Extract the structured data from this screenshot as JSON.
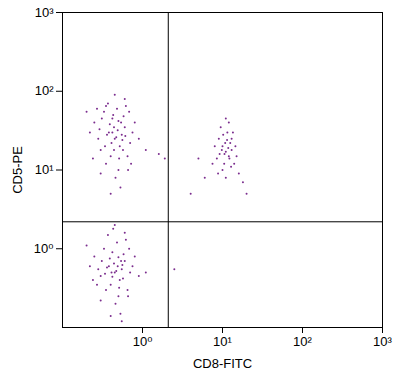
{
  "chart_data": {
    "type": "scatter",
    "xlabel": "CD8-FITC",
    "ylabel": "CD5-PE",
    "log": true,
    "color": "#7b2d8e",
    "xlim": [
      0.1,
      1000
    ],
    "ylim": [
      0.1,
      1000
    ],
    "xticks": [
      {
        "value": 1,
        "label": "10⁰"
      },
      {
        "value": 10,
        "label": "10¹"
      },
      {
        "value": 100,
        "label": "10²"
      },
      {
        "value": 1000,
        "label": "10³"
      }
    ],
    "yticks": [
      {
        "value": 1,
        "label": "10⁰"
      },
      {
        "value": 10,
        "label": "10¹"
      },
      {
        "value": 100,
        "label": "10²"
      },
      {
        "value": 1000,
        "label": "10³"
      }
    ],
    "gates": {
      "x": 2.1,
      "y": 2.2
    },
    "points": [
      [
        0.45,
        25
      ],
      [
        0.38,
        30
      ],
      [
        0.52,
        20
      ],
      [
        0.6,
        35
      ],
      [
        0.3,
        18
      ],
      [
        0.42,
        45
      ],
      [
        0.55,
        28
      ],
      [
        0.35,
        12
      ],
      [
        0.48,
        60
      ],
      [
        0.25,
        40
      ],
      [
        0.7,
        22
      ],
      [
        0.4,
        15
      ],
      [
        0.33,
        55
      ],
      [
        0.58,
        48
      ],
      [
        0.28,
        25
      ],
      [
        0.5,
        10
      ],
      [
        0.65,
        15
      ],
      [
        0.44,
        35
      ],
      [
        0.37,
        70
      ],
      [
        0.62,
        65
      ],
      [
        0.22,
        30
      ],
      [
        0.8,
        40
      ],
      [
        0.46,
        8
      ],
      [
        0.3,
        9
      ],
      [
        0.54,
        40
      ],
      [
        0.41,
        22
      ],
      [
        0.49,
        32
      ],
      [
        0.36,
        28
      ],
      [
        0.57,
        18
      ],
      [
        0.43,
        50
      ],
      [
        0.27,
        60
      ],
      [
        0.75,
        30
      ],
      [
        0.39,
        38
      ],
      [
        0.51,
        14
      ],
      [
        0.6,
        80
      ],
      [
        0.34,
        20
      ],
      [
        0.47,
        26
      ],
      [
        0.68,
        55
      ],
      [
        0.24,
        14
      ],
      [
        0.9,
        25
      ],
      [
        0.53,
        6
      ],
      [
        0.31,
        45
      ],
      [
        0.45,
        90
      ],
      [
        0.4,
        5
      ],
      [
        0.66,
        10
      ],
      [
        0.2,
        55
      ],
      [
        1.1,
        18
      ],
      [
        0.56,
        24
      ],
      [
        0.42,
        30
      ],
      [
        0.5,
        42
      ],
      [
        0.29,
        33
      ],
      [
        0.61,
        27
      ],
      [
        0.35,
        65
      ],
      [
        0.72,
        12
      ],
      [
        0.44,
        18
      ],
      [
        1.6,
        16
      ],
      [
        1.9,
        14
      ],
      [
        11,
        17
      ],
      [
        10,
        20
      ],
      [
        12,
        15
      ],
      [
        9,
        25
      ],
      [
        13,
        18
      ],
      [
        10.5,
        12
      ],
      [
        11.5,
        30
      ],
      [
        8.5,
        14
      ],
      [
        12.5,
        22
      ],
      [
        14,
        12
      ],
      [
        9.5,
        35
      ],
      [
        10,
        10
      ],
      [
        11,
        8
      ],
      [
        13,
        25
      ],
      [
        12,
        40
      ],
      [
        8,
        20
      ],
      [
        15,
        15
      ],
      [
        10.8,
        22
      ],
      [
        11.8,
        19
      ],
      [
        9.2,
        16
      ],
      [
        12.8,
        11
      ],
      [
        10.2,
        28
      ],
      [
        16,
        9
      ],
      [
        7.5,
        12
      ],
      [
        11,
        45
      ],
      [
        13.5,
        30
      ],
      [
        9.8,
        18
      ],
      [
        12.2,
        14
      ],
      [
        10.6,
        16
      ],
      [
        11.4,
        24
      ],
      [
        14.5,
        20
      ],
      [
        8.8,
        9
      ],
      [
        18,
        7
      ],
      [
        20,
        5
      ],
      [
        6,
        8
      ],
      [
        5,
        14
      ],
      [
        4,
        5
      ],
      [
        0.45,
        0.5
      ],
      [
        0.38,
        0.6
      ],
      [
        0.52,
        0.4
      ],
      [
        0.6,
        0.7
      ],
      [
        0.3,
        0.45
      ],
      [
        0.42,
        0.9
      ],
      [
        0.55,
        0.55
      ],
      [
        0.35,
        0.3
      ],
      [
        0.48,
        1.2
      ],
      [
        0.25,
        0.8
      ],
      [
        0.7,
        0.5
      ],
      [
        0.4,
        0.35
      ],
      [
        0.33,
        1.0
      ],
      [
        0.58,
        0.85
      ],
      [
        0.28,
        0.55
      ],
      [
        0.5,
        0.25
      ],
      [
        0.65,
        0.3
      ],
      [
        0.44,
        0.65
      ],
      [
        0.37,
        1.5
      ],
      [
        0.62,
        1.3
      ],
      [
        0.22,
        0.6
      ],
      [
        0.8,
        0.8
      ],
      [
        0.46,
        0.2
      ],
      [
        0.3,
        0.22
      ],
      [
        0.54,
        0.7
      ],
      [
        0.41,
        0.5
      ],
      [
        0.49,
        0.6
      ],
      [
        0.36,
        0.58
      ],
      [
        0.57,
        0.42
      ],
      [
        0.43,
        1.8
      ],
      [
        0.27,
        0.35
      ],
      [
        0.75,
        0.6
      ],
      [
        0.39,
        0.75
      ],
      [
        0.51,
        0.32
      ],
      [
        0.6,
        1.6
      ],
      [
        0.34,
        0.48
      ],
      [
        0.47,
        0.52
      ],
      [
        0.68,
        1.0
      ],
      [
        0.24,
        0.4
      ],
      [
        0.9,
        0.45
      ],
      [
        0.53,
        0.15
      ],
      [
        0.31,
        0.7
      ],
      [
        0.45,
        2.0
      ],
      [
        0.4,
        0.14
      ],
      [
        0.66,
        0.25
      ],
      [
        0.2,
        1.1
      ],
      [
        1.1,
        0.5
      ],
      [
        0.56,
        0.62
      ],
      [
        0.42,
        0.44
      ],
      [
        0.5,
        0.78
      ],
      [
        0.55,
        0.12
      ],
      [
        2.5,
        0.55
      ]
    ]
  }
}
